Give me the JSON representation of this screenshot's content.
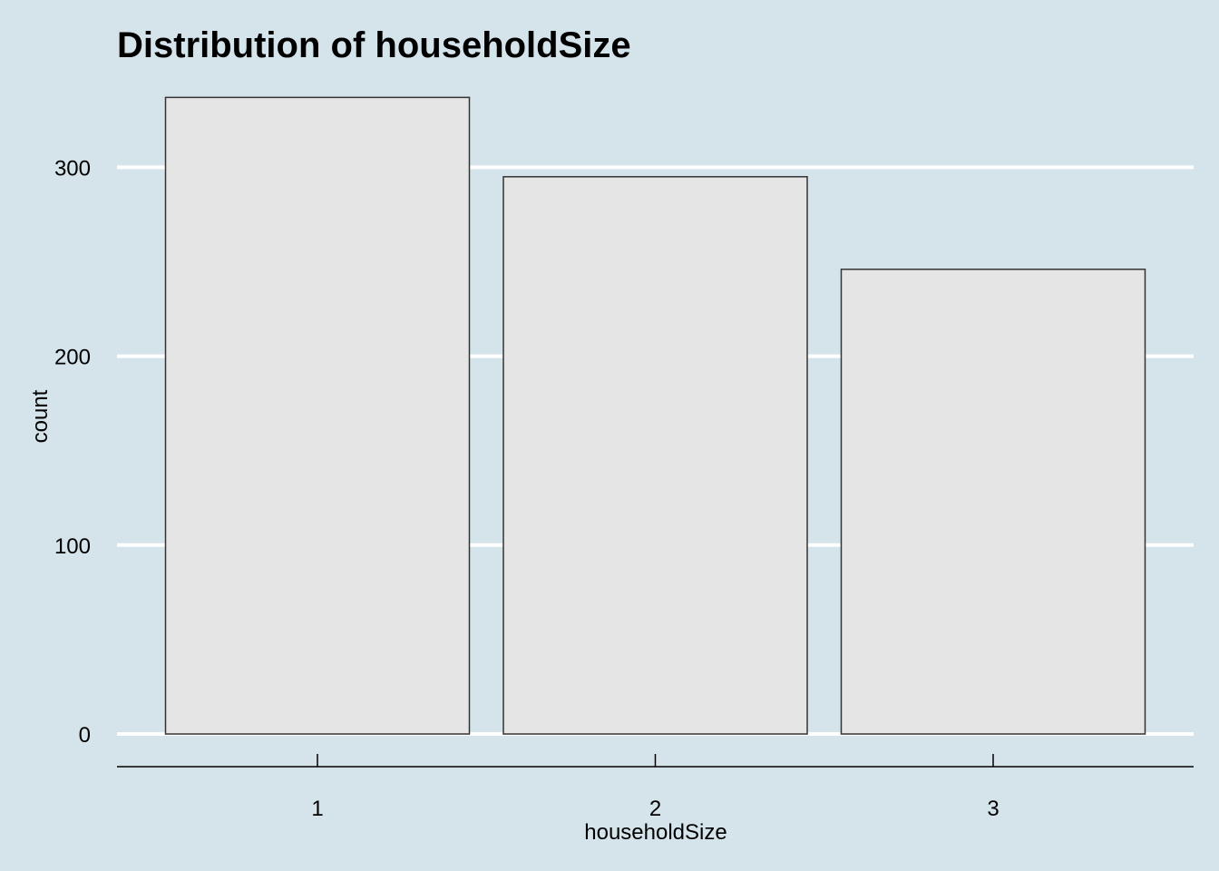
{
  "chart_data": {
    "type": "bar",
    "title": "Distribution of householdSize",
    "xlabel": "householdSize",
    "ylabel": "count",
    "categories": [
      "1",
      "2",
      "3"
    ],
    "values": [
      337,
      295,
      246
    ],
    "ylim": [
      0,
      337
    ],
    "yticks": [
      "0",
      "100",
      "200",
      "300"
    ],
    "grid": "horizontal",
    "colors": {
      "background": "#d5e4eb",
      "bar_fill": "#e5e5e5",
      "bar_stroke": "#333333",
      "gridline": "#ffffff",
      "axis": "#000000"
    }
  }
}
